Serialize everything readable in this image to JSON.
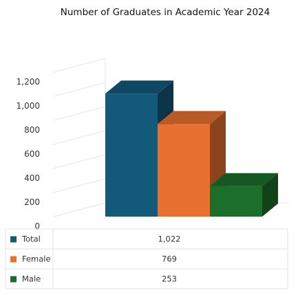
{
  "chart_data": {
    "type": "bar",
    "title": "Number of Graduates in Academic Year 2024",
    "xlabel": "",
    "ylabel": "",
    "ylim": [
      0,
      1200
    ],
    "yticks": [
      "0",
      "200",
      "400",
      "600",
      "800",
      "1,000",
      "1,200"
    ],
    "grid": true,
    "legend": "data-table",
    "series": [
      {
        "name": "Total",
        "value": 1022,
        "label": "1,022",
        "color": "#135a7a"
      },
      {
        "name": "Female",
        "value": 769,
        "label": "769",
        "color": "#e8712f"
      },
      {
        "name": "Male",
        "value": 253,
        "label": "253",
        "color": "#1c6e2b"
      }
    ]
  }
}
